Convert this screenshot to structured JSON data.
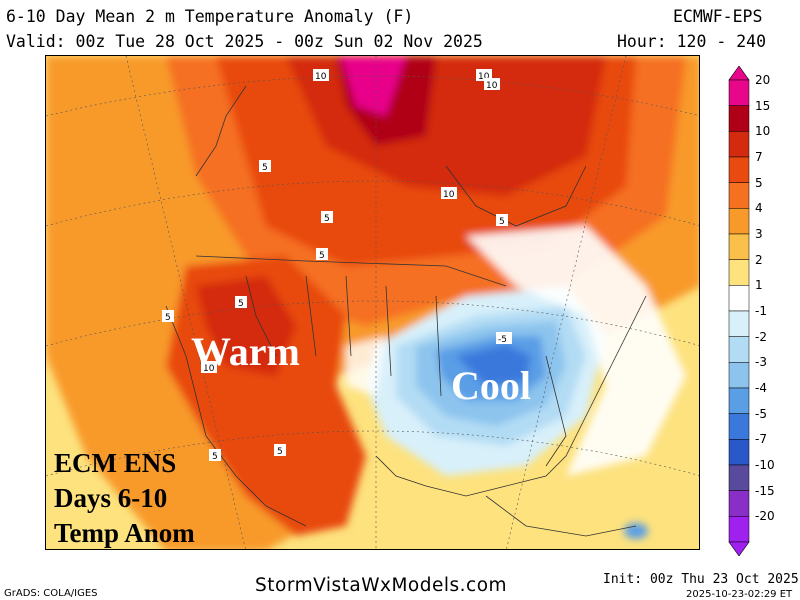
{
  "header": {
    "title": "6-10 Day Mean 2 m Temperature Anomaly (F)",
    "model": "ECMWF-EPS",
    "valid": "Valid: 00z Tue 28 Oct 2025 - 00z Sun 02 Nov 2025",
    "hours": "Hour: 120 - 240"
  },
  "overlay": {
    "warm_label": "Warm",
    "cool_label": "Cool",
    "ecm_lines": [
      "ECM ENS",
      "Days 6-10",
      "Temp Anom"
    ]
  },
  "contour_labels": [
    "10",
    "10",
    "10",
    "10",
    "5",
    "5",
    "5",
    "5",
    "5",
    "5",
    "10",
    "5",
    "5",
    "-5"
  ],
  "legend": {
    "labels": [
      "20",
      "15",
      "10",
      "7",
      "5",
      "4",
      "3",
      "2",
      "1",
      "-1",
      "-2",
      "-3",
      "-4",
      "-5",
      "-7",
      "-10",
      "-15",
      "-20"
    ],
    "colors": [
      "#e8068b",
      "#b00018",
      "#d42a10",
      "#e84a10",
      "#f57020",
      "#f89a2a",
      "#fbc04a",
      "#fde27e",
      "#ffffff",
      "#d8f0fa",
      "#b2dcf4",
      "#8cc4ee",
      "#5a9ee6",
      "#3a78dc",
      "#2a58c8",
      "#5a4a9e",
      "#8a2ec8",
      "#a020f0"
    ]
  },
  "footer": {
    "credit": "GrADS: COLA/IGES",
    "site": "StormVistaWxModels.com",
    "init": "Init: 00z Thu 23 Oct 2025",
    "generated": "2025-10-23-02:29 ET"
  },
  "colors": {
    "warm_text": "#ffffff",
    "cool_text": "#ffffff",
    "ocean_fill": "#fde27e",
    "warm_core": "#d42a10",
    "cool_core": "#3a78dc"
  }
}
